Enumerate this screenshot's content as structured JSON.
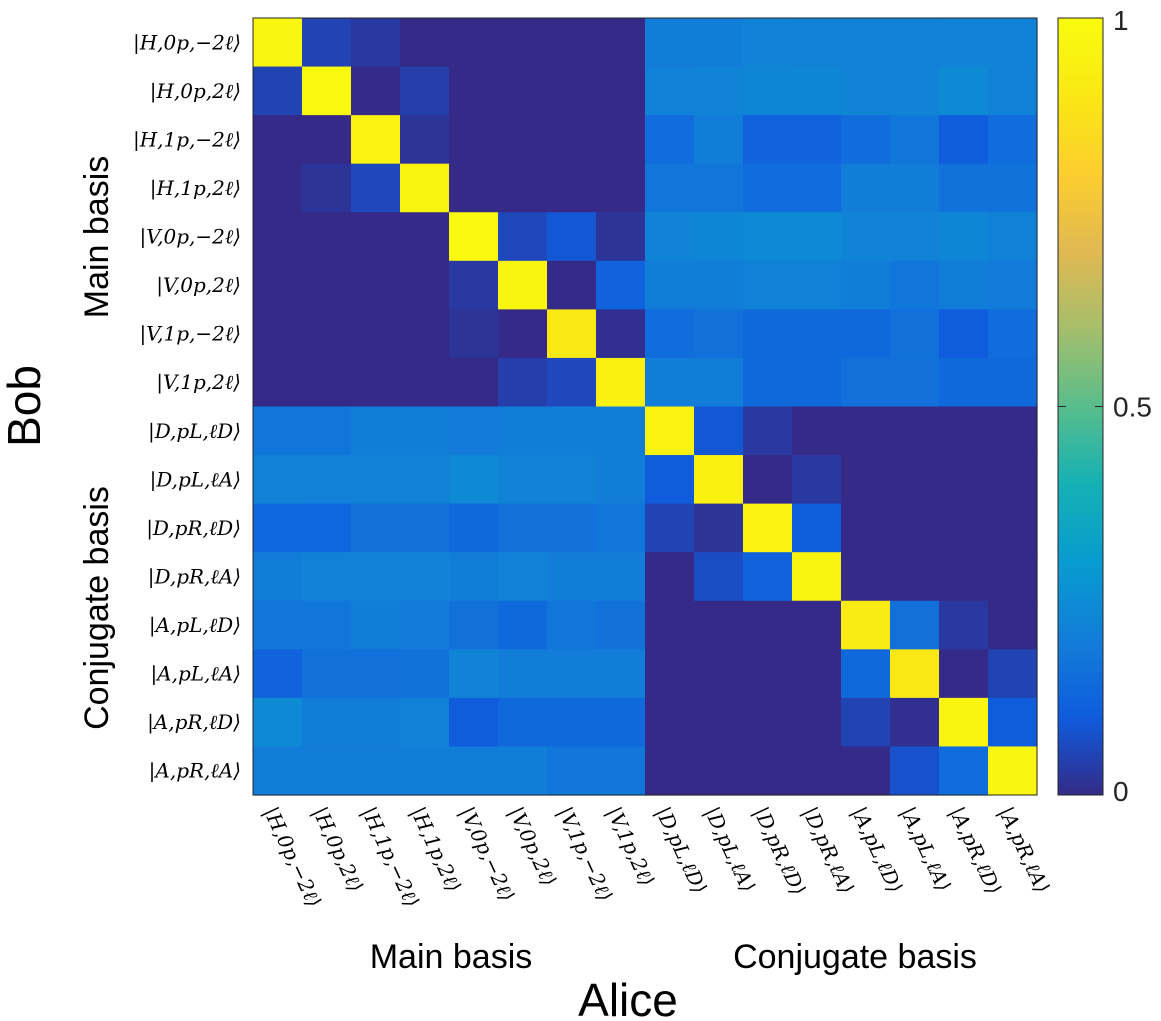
{
  "chart_data": {
    "type": "heatmap",
    "xlabel": "Alice",
    "ylabel": "Bob",
    "x_groups": [
      "Main basis",
      "Conjugate basis"
    ],
    "y_groups": [
      "Main basis",
      "Conjugate basis"
    ],
    "rows": [
      "|H,0p,−2ℓ⟩",
      "|H,0p,2ℓ⟩",
      "|H,1p,−2ℓ⟩",
      "|H,1p,2ℓ⟩",
      "|V,0p,−2ℓ⟩",
      "|V,0p,2ℓ⟩",
      "|V,1p,−2ℓ⟩",
      "|V,1p,2ℓ⟩",
      "|D,pL,ℓD⟩",
      "|D,pL,ℓA⟩",
      "|D,pR,ℓD⟩",
      "|D,pR,ℓA⟩",
      "|A,pL,ℓD⟩",
      "|A,pL,ℓA⟩",
      "|A,pR,ℓD⟩",
      "|A,pR,ℓA⟩"
    ],
    "columns": [
      "|H,0p,−2ℓ⟩",
      "|H,0p,2ℓ⟩",
      "|H,1p,−2ℓ⟩",
      "|H,1p,2ℓ⟩",
      "|V,0p,−2ℓ⟩",
      "|V,0p,2ℓ⟩",
      "|V,1p,−2ℓ⟩",
      "|V,1p,2ℓ⟩",
      "|D,pL,ℓD⟩",
      "|D,pL,ℓA⟩",
      "|D,pR,ℓD⟩",
      "|D,pR,ℓA⟩",
      "|A,pL,ℓD⟩",
      "|A,pL,ℓA⟩",
      "|A,pR,ℓD⟩",
      "|A,pR,ℓA⟩"
    ],
    "values": [
      [
        0.98,
        0.05,
        0.03,
        0.0,
        0.0,
        0.0,
        0.0,
        0.0,
        0.2,
        0.2,
        0.22,
        0.21,
        0.21,
        0.21,
        0.22,
        0.22
      ],
      [
        0.05,
        0.99,
        0.0,
        0.04,
        0.0,
        0.0,
        0.0,
        0.0,
        0.21,
        0.22,
        0.23,
        0.23,
        0.22,
        0.22,
        0.24,
        0.21
      ],
      [
        0.0,
        0.0,
        0.95,
        0.02,
        0.0,
        0.0,
        0.0,
        0.0,
        0.15,
        0.2,
        0.12,
        0.12,
        0.15,
        0.18,
        0.1,
        0.15
      ],
      [
        0.0,
        0.02,
        0.06,
        0.96,
        0.0,
        0.0,
        0.0,
        0.0,
        0.18,
        0.18,
        0.15,
        0.15,
        0.2,
        0.2,
        0.17,
        0.17
      ],
      [
        0.0,
        0.0,
        0.0,
        0.0,
        0.99,
        0.06,
        0.09,
        0.02,
        0.22,
        0.23,
        0.24,
        0.24,
        0.22,
        0.22,
        0.23,
        0.21
      ],
      [
        0.0,
        0.0,
        0.0,
        0.0,
        0.03,
        0.97,
        0.0,
        0.12,
        0.2,
        0.2,
        0.21,
        0.21,
        0.2,
        0.18,
        0.2,
        0.19
      ],
      [
        0.0,
        0.0,
        0.0,
        0.0,
        0.02,
        0.0,
        0.9,
        0.01,
        0.15,
        0.16,
        0.14,
        0.14,
        0.14,
        0.16,
        0.1,
        0.15
      ],
      [
        0.0,
        0.0,
        0.0,
        0.0,
        0.0,
        0.04,
        0.06,
        0.94,
        0.2,
        0.2,
        0.14,
        0.14,
        0.16,
        0.16,
        0.14,
        0.14
      ],
      [
        0.18,
        0.18,
        0.2,
        0.2,
        0.19,
        0.2,
        0.2,
        0.2,
        0.95,
        0.09,
        0.03,
        0.0,
        0.0,
        0.0,
        0.0,
        0.0
      ],
      [
        0.22,
        0.21,
        0.21,
        0.21,
        0.24,
        0.22,
        0.22,
        0.2,
        0.1,
        0.94,
        0.0,
        0.03,
        0.0,
        0.0,
        0.0,
        0.0
      ],
      [
        0.13,
        0.13,
        0.16,
        0.16,
        0.14,
        0.16,
        0.16,
        0.18,
        0.05,
        0.02,
        0.95,
        0.11,
        0.0,
        0.0,
        0.0,
        0.0
      ],
      [
        0.2,
        0.21,
        0.22,
        0.22,
        0.2,
        0.21,
        0.2,
        0.2,
        0.0,
        0.07,
        0.12,
        0.96,
        0.0,
        0.0,
        0.0,
        0.0
      ],
      [
        0.18,
        0.18,
        0.2,
        0.19,
        0.16,
        0.14,
        0.18,
        0.16,
        0.0,
        0.0,
        0.0,
        0.0,
        0.92,
        0.16,
        0.03,
        0.0
      ],
      [
        0.12,
        0.16,
        0.16,
        0.17,
        0.22,
        0.2,
        0.2,
        0.2,
        0.0,
        0.0,
        0.0,
        0.0,
        0.14,
        0.9,
        0.0,
        0.05
      ],
      [
        0.24,
        0.2,
        0.2,
        0.21,
        0.1,
        0.14,
        0.14,
        0.14,
        0.0,
        0.0,
        0.0,
        0.0,
        0.05,
        0.01,
        0.97,
        0.1
      ],
      [
        0.2,
        0.2,
        0.2,
        0.2,
        0.2,
        0.2,
        0.18,
        0.18,
        0.0,
        0.0,
        0.0,
        0.0,
        0.0,
        0.08,
        0.15,
        0.98
      ]
    ],
    "colorbar": {
      "range": [
        0,
        1
      ],
      "tick_values": [
        0,
        0.5,
        1
      ],
      "tick_labels": [
        "0",
        "0.5",
        "1"
      ],
      "colormap": "parula"
    }
  }
}
